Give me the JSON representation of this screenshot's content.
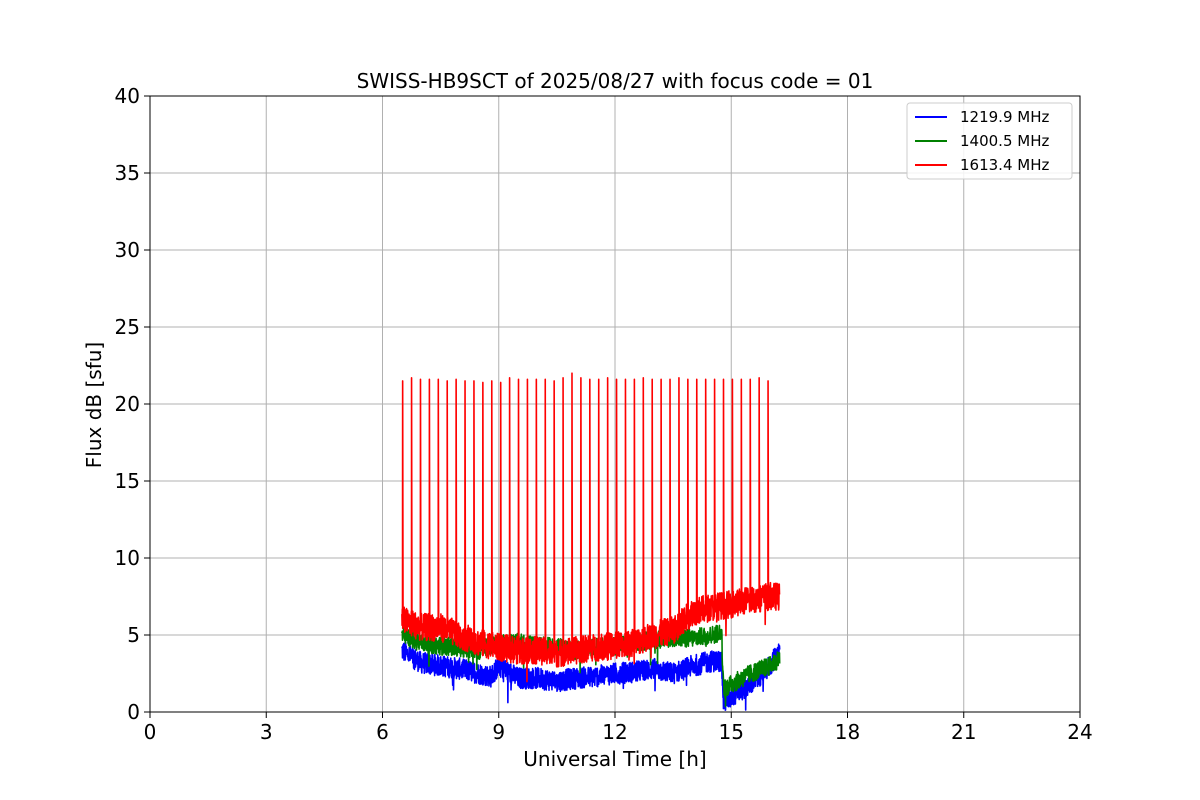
{
  "chart_data": {
    "type": "line",
    "title": "SWISS-HB9SCT of 2025/08/27 with focus code = 01",
    "xlabel": "Universal Time [h]",
    "ylabel": "Flux dB [sfu]",
    "xlim": [
      0,
      24
    ],
    "ylim": [
      0,
      40
    ],
    "xticks": [
      0,
      3,
      6,
      9,
      12,
      15,
      18,
      21,
      24
    ],
    "yticks": [
      0,
      5,
      10,
      15,
      20,
      25,
      30,
      35,
      40
    ],
    "grid": true,
    "legend_position": "top-right",
    "series": [
      {
        "name": "1219.9 MHz",
        "color": "#0000ff",
        "noise": 0.7,
        "x": [
          6.5,
          7.0,
          7.5,
          8.0,
          8.5,
          8.8,
          9.0,
          9.5,
          10.0,
          10.5,
          11.0,
          11.5,
          12.0,
          12.5,
          13.0,
          13.5,
          14.0,
          14.5,
          14.75,
          14.8,
          15.0,
          15.5,
          16.0,
          16.25
        ],
        "y": [
          4.0,
          3.2,
          3.0,
          2.8,
          2.5,
          2.3,
          3.0,
          2.2,
          2.2,
          2.0,
          2.2,
          2.3,
          2.5,
          2.6,
          2.8,
          2.5,
          3.0,
          3.3,
          3.3,
          0.6,
          1.0,
          1.8,
          3.0,
          4.0
        ]
      },
      {
        "name": "1400.5 MHz",
        "color": "#008000",
        "noise": 0.6,
        "x": [
          6.5,
          7.0,
          7.5,
          8.0,
          8.5,
          9.0,
          9.5,
          10.0,
          10.5,
          11.0,
          11.5,
          12.0,
          12.5,
          13.0,
          13.5,
          14.0,
          14.5,
          14.75,
          14.8,
          15.0,
          15.5,
          16.0,
          16.25
        ],
        "y": [
          5.0,
          4.5,
          4.3,
          4.2,
          4.0,
          4.5,
          4.5,
          4.3,
          4.2,
          4.0,
          4.2,
          4.3,
          4.5,
          4.7,
          4.8,
          4.8,
          5.0,
          5.2,
          1.5,
          1.8,
          2.5,
          3.0,
          3.5
        ]
      },
      {
        "name": "1613.4 MHz",
        "color": "#ff0000",
        "noise": 0.9,
        "x": [
          6.5,
          7.0,
          7.5,
          8.0,
          8.5,
          9.0,
          9.5,
          10.0,
          10.5,
          11.0,
          11.5,
          12.0,
          12.5,
          13.0,
          13.5,
          14.0,
          14.5,
          15.0,
          15.5,
          16.0,
          16.25
        ],
        "y": [
          6.0,
          5.5,
          5.5,
          5.0,
          4.5,
          4.2,
          4.0,
          4.0,
          3.8,
          4.0,
          4.2,
          4.3,
          4.5,
          5.0,
          5.3,
          6.5,
          6.8,
          7.0,
          7.3,
          7.5,
          7.5
        ],
        "spikes": {
          "x": [
            6.52,
            6.75,
            6.98,
            7.21,
            7.44,
            7.67,
            7.9,
            8.13,
            8.36,
            8.59,
            8.82,
            9.05,
            9.28,
            9.51,
            9.74,
            9.97,
            10.2,
            10.43,
            10.66,
            10.89,
            11.12,
            11.35,
            11.58,
            11.81,
            12.04,
            12.27,
            12.5,
            12.73,
            12.96,
            13.19,
            13.42,
            13.65,
            13.88,
            14.11,
            14.34,
            14.57,
            14.8,
            15.03,
            15.26,
            15.49,
            15.72,
            15.95
          ],
          "y": [
            21.5,
            21.7,
            21.6,
            21.6,
            21.6,
            21.5,
            21.6,
            21.5,
            21.5,
            21.4,
            21.5,
            21.4,
            21.7,
            21.6,
            21.6,
            21.6,
            21.6,
            21.5,
            21.7,
            22.0,
            21.7,
            21.6,
            21.6,
            21.7,
            21.6,
            21.6,
            21.6,
            21.7,
            21.6,
            21.6,
            21.6,
            21.7,
            21.6,
            21.6,
            21.6,
            21.6,
            21.6,
            21.6,
            21.6,
            21.6,
            21.7,
            21.5
          ]
        }
      }
    ]
  }
}
